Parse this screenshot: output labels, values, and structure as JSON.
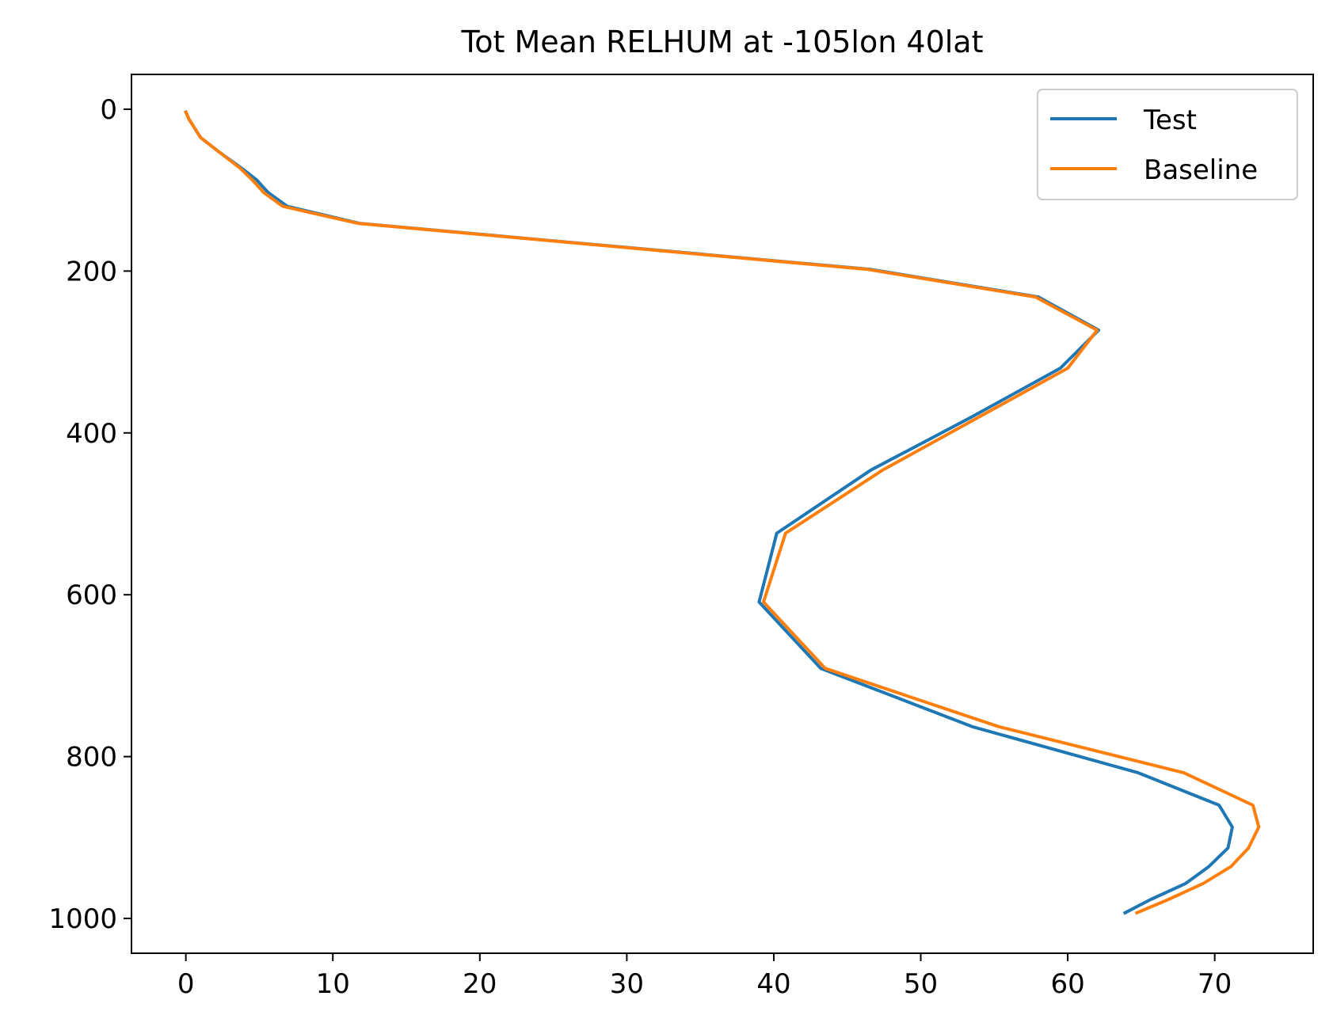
{
  "chart_data": {
    "type": "line",
    "title": "Tot Mean RELHUM at -105lon 40lat",
    "xlabel": "",
    "ylabel": "",
    "xlim": [
      -3.7,
      76.7
    ],
    "ylim": [
      1043,
      -43
    ],
    "y_inverted": true,
    "grid": false,
    "legend_position": "top-right",
    "x_ticks": [
      0,
      10,
      20,
      30,
      40,
      50,
      60,
      70
    ],
    "y_ticks": [
      0,
      200,
      400,
      600,
      800,
      1000
    ],
    "series": [
      {
        "name": "Test",
        "color": "#1f77b4",
        "points": [
          [
            0.0,
            3.6
          ],
          [
            0.2,
            12
          ],
          [
            1.0,
            35
          ],
          [
            2.2,
            52
          ],
          [
            3.8,
            73
          ],
          [
            4.8,
            87
          ],
          [
            5.6,
            103
          ],
          [
            6.9,
            120
          ],
          [
            11.8,
            141
          ],
          [
            46.6,
            198
          ],
          [
            58.0,
            232
          ],
          [
            62.1,
            273
          ],
          [
            59.5,
            320
          ],
          [
            53.5,
            380
          ],
          [
            46.6,
            446
          ],
          [
            40.2,
            524
          ],
          [
            39.0,
            609
          ],
          [
            43.2,
            691
          ],
          [
            53.5,
            763
          ],
          [
            64.8,
            820
          ],
          [
            70.3,
            860
          ],
          [
            71.2,
            887
          ],
          [
            70.9,
            913
          ],
          [
            69.6,
            936
          ],
          [
            68.0,
            957
          ],
          [
            65.6,
            977
          ],
          [
            63.9,
            993
          ]
        ]
      },
      {
        "name": "Baseline",
        "color": "#ff7f0e",
        "points": [
          [
            0.0,
            3.6
          ],
          [
            0.2,
            12
          ],
          [
            1.0,
            35
          ],
          [
            2.2,
            52
          ],
          [
            3.7,
            73
          ],
          [
            4.5,
            87
          ],
          [
            5.3,
            103
          ],
          [
            6.6,
            120
          ],
          [
            11.7,
            141
          ],
          [
            46.4,
            198
          ],
          [
            57.8,
            232
          ],
          [
            62.0,
            273
          ],
          [
            60.0,
            320
          ],
          [
            54.0,
            380
          ],
          [
            47.4,
            446
          ],
          [
            40.8,
            524
          ],
          [
            39.3,
            609
          ],
          [
            43.5,
            691
          ],
          [
            55.3,
            763
          ],
          [
            67.9,
            820
          ],
          [
            72.6,
            860
          ],
          [
            73.0,
            887
          ],
          [
            72.3,
            913
          ],
          [
            71.1,
            936
          ],
          [
            69.2,
            957
          ],
          [
            66.8,
            977
          ],
          [
            64.7,
            993
          ]
        ]
      }
    ]
  }
}
